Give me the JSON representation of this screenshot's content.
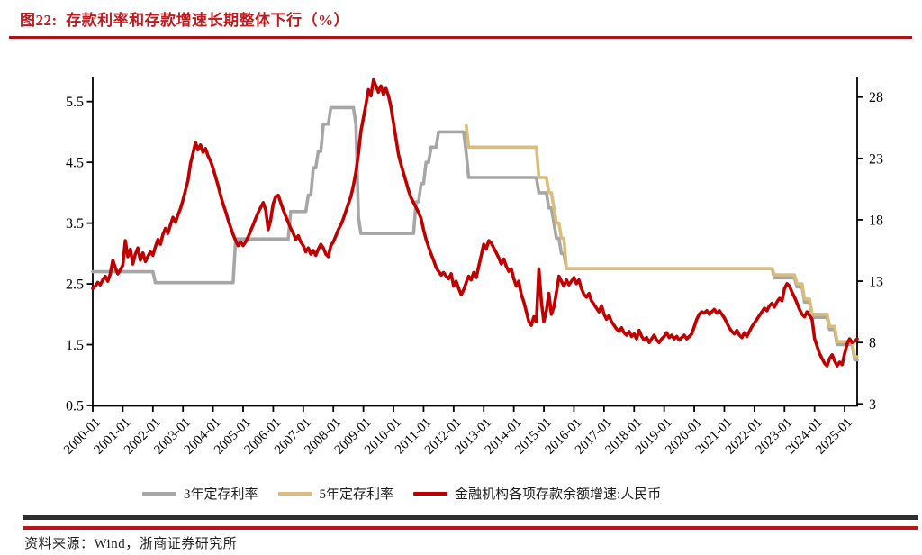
{
  "figure": {
    "title": "图22:  存款利率和存款增速长期整体下行（%）",
    "source": "资料来源：Wind，浙商证券研究所"
  },
  "colors": {
    "title_red": "#BE1A1F",
    "divider_red": "#A8161B",
    "footer_dark": "#2E2E2E",
    "footer_red": "#B5151B",
    "axis_black": "#000000",
    "series_3y_gray": "#A6A6A6",
    "series_5y_gold": "#D9BD7D",
    "series_growth_red": "#C00000"
  },
  "chart_data": {
    "type": "line",
    "title": "存款利率和存款增速长期整体下行（%）",
    "x_frequency": "monthly",
    "x_start": "2000-01",
    "x_end": "2025-06",
    "x_tick_labels": [
      "2000-01",
      "2001-01",
      "2002-01",
      "2003-01",
      "2004-01",
      "2005-01",
      "2006-01",
      "2007-01",
      "2008-01",
      "2009-01",
      "2010-01",
      "2011-01",
      "2012-01",
      "2013-01",
      "2014-01",
      "2015-01",
      "2016-01",
      "2017-01",
      "2018-01",
      "2019-01",
      "2020-01",
      "2021-01",
      "2022-01",
      "2023-01",
      "2024-01",
      "2025-01"
    ],
    "left_axis": {
      "min": 0.5,
      "max": 5.5,
      "ticks": [
        "0.5",
        "1.5",
        "2.5",
        "3.5",
        "4.5",
        "5.5"
      ]
    },
    "right_axis": {
      "min": 3,
      "max": 28,
      "ticks": [
        "3",
        "8",
        "13",
        "18",
        "23",
        "28"
      ]
    },
    "grid": false,
    "legend_position": "bottom",
    "series": [
      {
        "name": "3年定存利率",
        "axis": "left",
        "color": "#A6A6A6",
        "type": "step",
        "rate_changes": [
          [
            "2000-01",
            2.7
          ],
          [
            "2002-02",
            2.52
          ],
          [
            "2004-10",
            3.24
          ],
          [
            "2006-08",
            3.69
          ],
          [
            "2007-03",
            3.96
          ],
          [
            "2007-05",
            4.41
          ],
          [
            "2007-07",
            4.68
          ],
          [
            "2007-09",
            5.13
          ],
          [
            "2007-12",
            5.4
          ],
          [
            "2008-10",
            5.13
          ],
          [
            "2008-11",
            3.6
          ],
          [
            "2008-12",
            3.33
          ],
          [
            "2010-10",
            3.85
          ],
          [
            "2010-12",
            4.15
          ],
          [
            "2011-02",
            4.5
          ],
          [
            "2011-04",
            4.75
          ],
          [
            "2011-07",
            5.0
          ],
          [
            "2012-06",
            4.65
          ],
          [
            "2012-07",
            4.25
          ],
          [
            "2014-11",
            4.0
          ],
          [
            "2015-03",
            3.75
          ],
          [
            "2015-05",
            3.5
          ],
          [
            "2015-06",
            3.25
          ],
          [
            "2015-08",
            3.0
          ],
          [
            "2015-10",
            2.75
          ],
          [
            "2022-09",
            2.6
          ],
          [
            "2023-06",
            2.45
          ],
          [
            "2023-09",
            2.2
          ],
          [
            "2023-12",
            1.95
          ],
          [
            "2024-07",
            1.75
          ],
          [
            "2024-10",
            1.5
          ],
          [
            "2025-05",
            1.25
          ]
        ]
      },
      {
        "name": "5年定存利率",
        "axis": "left",
        "color": "#D9BD7D",
        "type": "step",
        "rate_changes": [
          [
            "2012-06",
            5.1
          ],
          [
            "2012-07",
            4.75
          ],
          [
            "2014-11",
            4.25
          ],
          [
            "2015-03",
            4.0
          ],
          [
            "2015-05",
            3.75
          ],
          [
            "2015-06",
            3.5
          ],
          [
            "2015-08",
            3.25
          ],
          [
            "2015-10",
            2.75
          ],
          [
            "2022-09",
            2.65
          ],
          [
            "2023-06",
            2.5
          ],
          [
            "2023-09",
            2.25
          ],
          [
            "2023-12",
            2.0
          ],
          [
            "2024-07",
            1.8
          ],
          [
            "2024-10",
            1.55
          ],
          [
            "2025-05",
            1.3
          ]
        ]
      },
      {
        "name": "金融机构各项存款余额增速:人民币",
        "axis": "right",
        "color": "#C00000",
        "type": "line",
        "monthly_values": [
          12.4,
          12.6,
          12.9,
          12.7,
          13.1,
          13.4,
          13.0,
          13.6,
          14.7,
          14.1,
          13.6,
          13.9,
          14.3,
          16.3,
          15.0,
          15.6,
          14.4,
          15.2,
          15.7,
          14.7,
          15.3,
          14.6,
          15.0,
          15.4,
          15.1,
          15.8,
          16.4,
          16.0,
          16.8,
          17.3,
          16.9,
          17.6,
          18.2,
          17.8,
          18.4,
          18.9,
          19.6,
          20.4,
          21.2,
          22.6,
          23.4,
          24.3,
          23.7,
          24.1,
          23.5,
          23.8,
          23.2,
          22.8,
          22.2,
          21.5,
          20.8,
          20.0,
          19.3,
          18.7,
          18.0,
          17.4,
          16.8,
          16.3,
          15.9,
          16.2,
          15.9,
          16.2,
          16.6,
          17.1,
          17.6,
          18.1,
          18.6,
          19.0,
          19.4,
          18.8,
          17.2,
          18.0,
          19.3,
          19.9,
          20.0,
          19.4,
          18.8,
          18.3,
          17.8,
          17.3,
          16.9,
          16.4,
          16.7,
          16.2,
          15.9,
          15.4,
          15.7,
          15.2,
          15.5,
          15.1,
          15.6,
          16.0,
          15.7,
          15.2,
          15.0,
          15.9,
          16.2,
          16.7,
          17.2,
          17.6,
          18.1,
          18.7,
          19.3,
          19.9,
          20.8,
          21.9,
          23.4,
          25.2,
          26.3,
          27.4,
          28.6,
          28.1,
          29.4,
          28.9,
          28.4,
          28.9,
          28.2,
          28.7,
          28.1,
          27.2,
          25.9,
          24.6,
          23.3,
          22.5,
          21.8,
          21.1,
          20.4,
          19.8,
          19.4,
          19.0,
          18.6,
          18.1,
          17.2,
          16.4,
          15.8,
          15.2,
          14.7,
          14.1,
          13.8,
          13.5,
          13.7,
          13.4,
          13.2,
          13.6,
          12.6,
          13.0,
          12.4,
          11.9,
          12.3,
          12.9,
          13.4,
          13.1,
          13.7,
          13.3,
          14.2,
          15.1,
          16.0,
          15.6,
          16.3,
          16.1,
          15.7,
          15.3,
          14.9,
          14.4,
          14.8,
          14.2,
          13.8,
          14.0,
          13.2,
          12.6,
          13.0,
          11.9,
          11.3,
          10.5,
          9.7,
          9.4,
          10.1,
          9.7,
          14.0,
          11.3,
          9.7,
          10.6,
          12.0,
          10.3,
          10.9,
          12.1,
          13.4,
          13.0,
          12.6,
          13.1,
          12.7,
          13.0,
          13.3,
          12.8,
          13.1,
          12.4,
          11.9,
          11.7,
          12.0,
          11.4,
          11.1,
          10.8,
          10.5,
          11.0,
          10.3,
          9.9,
          10.2,
          9.7,
          9.4,
          9.1,
          8.9,
          9.2,
          8.8,
          8.6,
          8.9,
          8.5,
          8.7,
          8.3,
          9.0,
          8.5,
          8.2,
          8.4,
          8.0,
          8.3,
          8.6,
          8.2,
          8.0,
          8.3,
          8.5,
          8.8,
          8.4,
          8.6,
          8.3,
          8.5,
          8.2,
          8.4,
          8.6,
          8.3,
          8.5,
          8.7,
          9.3,
          9.9,
          10.3,
          10.5,
          10.4,
          10.6,
          10.3,
          10.5,
          10.7,
          10.4,
          10.6,
          10.3,
          10.0,
          9.6,
          9.2,
          8.9,
          8.7,
          9.0,
          8.6,
          8.4,
          8.8,
          8.5,
          8.9,
          9.3,
          9.6,
          9.9,
          10.2,
          10.5,
          10.8,
          10.6,
          11.0,
          11.2,
          10.9,
          11.3,
          11.6,
          11.4,
          12.4,
          12.8,
          12.6,
          12.1,
          11.7,
          11.2,
          10.7,
          10.3,
          10.1,
          10.5,
          10.2,
          9.9,
          8.3,
          7.7,
          7.1,
          6.7,
          6.3,
          6.1,
          6.7,
          7.0,
          6.5,
          6.1,
          6.4,
          6.2,
          7.1,
          7.9,
          8.3,
          8.0,
          8.1,
          8.3
        ]
      }
    ]
  }
}
